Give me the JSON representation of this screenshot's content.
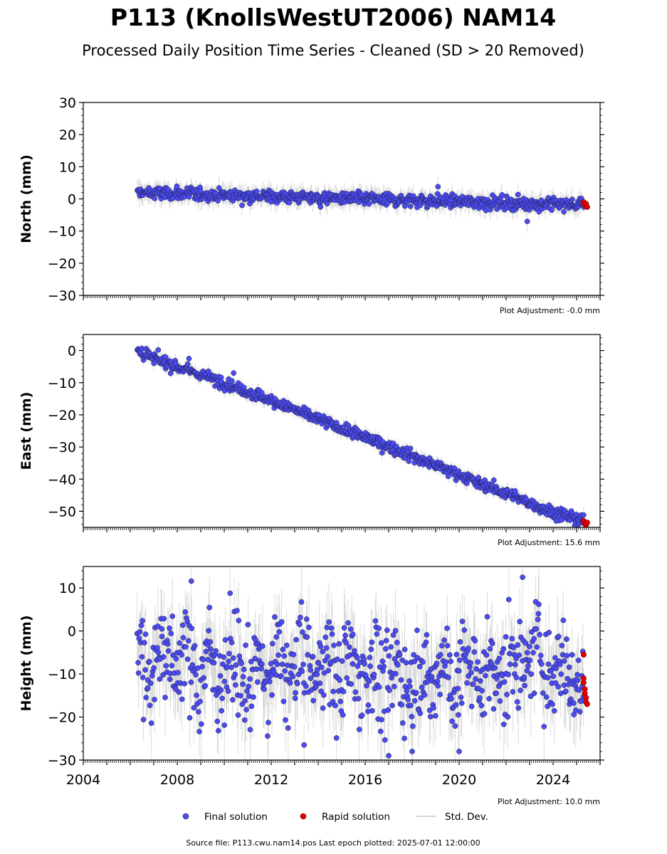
{
  "title": "P113 (KnollsWestUT2006) NAM14",
  "subtitle": "Processed Daily Position Time Series - Cleaned (SD > 20 Removed)",
  "footer": "Source file: P113.cwu.nam14.pos  Last epoch plotted: 2025-07-01 12:00:00",
  "colors": {
    "final": "#4b4bf0",
    "rapid": "#e00000",
    "stddev": "#999999",
    "edge": "#1a1a3a"
  },
  "legend": {
    "final": "Final solution",
    "rapid": "Rapid solution",
    "stddev": "Std. Dev."
  },
  "chart_data": [
    {
      "type": "scatter",
      "ylabel": "North (mm)",
      "ylim": [
        -30,
        30
      ],
      "yticks": [
        -30,
        -20,
        -10,
        0,
        10,
        20,
        30
      ],
      "adjustment": "Plot Adjustment: -0.0 mm",
      "series": [
        {
          "name": "Final solution",
          "x": [
            2006.3,
            2007.0,
            2008.0,
            2009.0,
            2010.0,
            2011.0,
            2012.0,
            2013.0,
            2014.0,
            2015.0,
            2016.0,
            2017.0,
            2018.0,
            2019.0,
            2020.0,
            2021.0,
            2022.0,
            2023.0,
            2024.0,
            2025.3
          ],
          "y": [
            2.0,
            1.8,
            1.6,
            1.4,
            1.2,
            1.0,
            0.8,
            0.6,
            0.4,
            0.2,
            0.0,
            -0.2,
            -0.4,
            -0.6,
            -0.8,
            -1.0,
            -1.2,
            -1.4,
            -1.6,
            -1.8
          ]
        },
        {
          "name": "Rapid solution",
          "x": [
            2025.3,
            2025.35,
            2025.4,
            2025.45
          ],
          "y": [
            -1.0,
            -2.0,
            -1.5,
            -2.5
          ]
        }
      ],
      "outliers": [
        {
          "x": 2019.1,
          "y": 3.8
        },
        {
          "x": 2022.9,
          "y": -7.0
        },
        {
          "x": 2023.4,
          "y": -4.0
        },
        {
          "x": 2014.1,
          "y": -2.5
        }
      ]
    },
    {
      "type": "scatter",
      "ylabel": "East (mm)",
      "ylim": [
        -55,
        5
      ],
      "yticks": [
        -50,
        -40,
        -30,
        -20,
        -10,
        0
      ],
      "adjustment": "Plot Adjustment: 15.6 mm",
      "series": [
        {
          "name": "Final solution",
          "x": [
            2006.3,
            2007.0,
            2008.0,
            2009.0,
            2010.0,
            2011.0,
            2012.0,
            2013.0,
            2014.0,
            2015.0,
            2016.0,
            2017.0,
            2018.0,
            2019.0,
            2020.0,
            2021.0,
            2022.0,
            2023.0,
            2024.0,
            2025.3
          ],
          "y": [
            0.0,
            -2.5,
            -5.0,
            -7.5,
            -10.0,
            -12.8,
            -15.5,
            -18.5,
            -21.3,
            -24.2,
            -27.0,
            -29.9,
            -32.8,
            -35.7,
            -38.6,
            -41.5,
            -44.5,
            -47.4,
            -50.3,
            -53.0
          ]
        },
        {
          "name": "Rapid solution",
          "x": [
            2025.3,
            2025.35,
            2025.4,
            2025.45
          ],
          "y": [
            -53.0,
            -53.8,
            -54.3,
            -53.5
          ]
        }
      ],
      "outliers": [
        {
          "x": 2010.4,
          "y": -7.0
        },
        {
          "x": 2007.5,
          "y": -2.0
        },
        {
          "x": 2008.5,
          "y": -2.5
        }
      ]
    },
    {
      "type": "scatter",
      "ylabel": "Height (mm)",
      "ylim": [
        -30,
        15
      ],
      "yticks": [
        -30,
        -20,
        -10,
        0,
        10
      ],
      "adjustment": "Plot Adjustment: 10.0 mm",
      "x_ticklabels": [
        "2004",
        "2008",
        "2012",
        "2016",
        "2020",
        "2024"
      ],
      "x_ticks": [
        2004,
        2008,
        2012,
        2016,
        2020,
        2024
      ],
      "xlim": [
        2004,
        2026
      ],
      "series": [
        {
          "name": "Final solution",
          "x": [
            2006.3,
            2007.0,
            2008.0,
            2009.0,
            2010.0,
            2011.0,
            2012.0,
            2013.0,
            2014.0,
            2015.0,
            2016.0,
            2017.0,
            2018.0,
            2019.0,
            2020.0,
            2021.0,
            2022.0,
            2023.0,
            2024.0,
            2025.3
          ],
          "y": [
            -8,
            -6,
            -6,
            -9,
            -8,
            -10,
            -9,
            -8,
            -8,
            -9,
            -9,
            -11,
            -11,
            -10,
            -10,
            -10,
            -9,
            -6,
            -8,
            -12
          ]
        },
        {
          "name": "Rapid solution",
          "x": [
            2025.3,
            2025.3,
            2025.3,
            2025.35,
            2025.35,
            2025.4,
            2025.4,
            2025.45
          ],
          "y": [
            -5.5,
            -11.0,
            -12.0,
            -13.5,
            -14.5,
            -15.5,
            -16.5,
            -17.0
          ]
        }
      ],
      "outliers": [
        {
          "x": 2008.6,
          "y": 11.6
        },
        {
          "x": 2022.7,
          "y": 12.5
        },
        {
          "x": 2017.0,
          "y": -29.0
        },
        {
          "x": 2020.0,
          "y": -28.0
        },
        {
          "x": 2013.4,
          "y": -26.5
        },
        {
          "x": 2018.0,
          "y": -28.0
        }
      ]
    }
  ]
}
